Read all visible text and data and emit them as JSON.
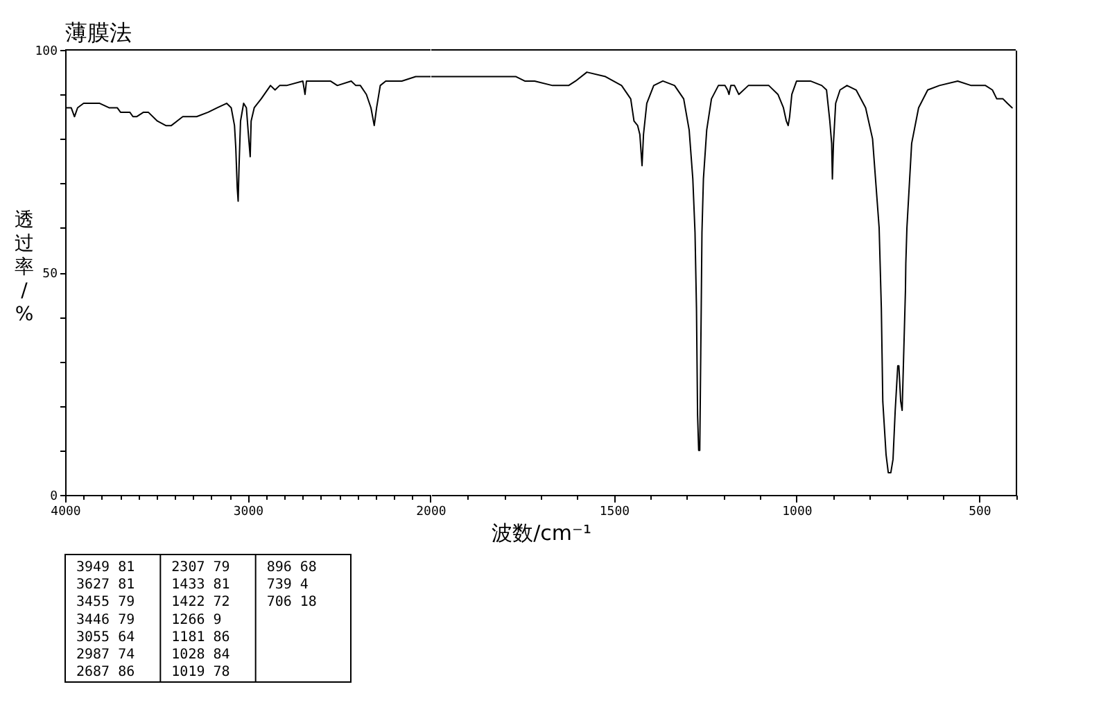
{
  "chart_data": [
    {
      "type": "line",
      "title": "薄膜法",
      "ylabel": "透过率/%",
      "x": [
        3995,
        3967,
        3949,
        3932,
        3899,
        3811,
        3760,
        3715,
        3697,
        3664,
        3646,
        3629,
        3609,
        3571,
        3545,
        3495,
        3449,
        3419,
        3356,
        3280,
        3217,
        3167,
        3116,
        3091,
        3073,
        3066,
        3058,
        3053,
        3048,
        3040,
        3023,
        3008,
        2995,
        2987,
        2982,
        2965,
        2927,
        2876,
        2851,
        2826,
        2788,
        2699,
        2687,
        2679,
        2548,
        2510,
        2434,
        2409,
        2384,
        2351,
        2326,
        2308,
        2295,
        2275,
        2245,
        2157,
        2081,
        2018,
        2000
      ],
      "series": [
        {
          "color": "#000000",
          "values": [
            87,
            87,
            85,
            87,
            88,
            88,
            87,
            87,
            86,
            86,
            86,
            85,
            85,
            86,
            86,
            84,
            83,
            83,
            85,
            85,
            86,
            87,
            88,
            87,
            83,
            78,
            69,
            66,
            74,
            84,
            88,
            87,
            80,
            76,
            84,
            87,
            89,
            92,
            91,
            92,
            92,
            93,
            90,
            93,
            93,
            92,
            93,
            92,
            92,
            90,
            87,
            83,
            87,
            92,
            93,
            93,
            94,
            94,
            94
          ]
        }
      ],
      "xlim": [
        4000,
        2000
      ],
      "xticks": [
        4000,
        {
          "value": 3900,
          "label": null
        },
        {
          "value": 3800,
          "label": null
        },
        {
          "value": 3700,
          "label": null
        },
        {
          "value": 3600,
          "label": null
        },
        {
          "value": 3500,
          "label": null
        },
        {
          "value": 3400,
          "label": null
        },
        {
          "value": 3300,
          "label": null
        },
        {
          "value": 3200,
          "label": null
        },
        {
          "value": 3100,
          "label": null
        },
        3000,
        {
          "value": 2900,
          "label": null
        },
        {
          "value": 2800,
          "label": null
        },
        {
          "value": 2700,
          "label": null
        },
        {
          "value": 2600,
          "label": null
        },
        {
          "value": 2500,
          "label": null
        },
        {
          "value": 2400,
          "label": null
        },
        {
          "value": 2300,
          "label": null
        },
        {
          "value": 2200,
          "label": null
        },
        {
          "value": 2100,
          "label": null
        },
        2000
      ],
      "ylim": [
        0,
        100
      ],
      "yticks": [
        0,
        {
          "value": 10,
          "label": null
        },
        {
          "value": 20,
          "label": null
        },
        {
          "value": 30,
          "label": null
        },
        {
          "value": 40,
          "label": null
        },
        50,
        {
          "value": 60,
          "label": null
        },
        {
          "value": 70,
          "label": null
        },
        {
          "value": 80,
          "label": null
        },
        {
          "value": 90,
          "label": null
        },
        100
      ],
      "annotations": [
        "3949 81",
        "3627 81",
        "3455 79",
        "3446 79",
        "3055 64",
        "2987 74",
        "2687 86",
        "2307 79",
        "1433 81",
        "1422 72",
        "1266 9",
        "1181 86",
        "1028 84",
        "1019 78",
        "896 68",
        "739 4",
        "706 18"
      ]
    },
    {
      "type": "line",
      "xlabel": "波数/cm⁻¹",
      "x": [
        2000,
        1970,
        1894,
        1856,
        1818,
        1768,
        1744,
        1717,
        1668,
        1624,
        1605,
        1574,
        1523,
        1479,
        1454,
        1445,
        1435,
        1429,
        1423,
        1419,
        1410,
        1391,
        1366,
        1334,
        1309,
        1294,
        1284,
        1278,
        1274,
        1271,
        1268,
        1265,
        1261,
        1259,
        1255,
        1246,
        1233,
        1214,
        1196,
        1189,
        1185,
        1180,
        1170,
        1158,
        1132,
        1101,
        1076,
        1051,
        1036,
        1028,
        1023,
        1019,
        1013,
        1000,
        962,
        931,
        918,
        909,
        904,
        902,
        899,
        893,
        881,
        862,
        837,
        811,
        792,
        774,
        768,
        764,
        755,
        749,
        742,
        736,
        730,
        723,
        720,
        715,
        711,
        707,
        702,
        701,
        698,
        685,
        666,
        641,
        609,
        559,
        522,
        483,
        464,
        452,
        435,
        423,
        410
      ],
      "series": [
        {
          "color": "#000000",
          "values": [
            94,
            94,
            94,
            94,
            94,
            94,
            93,
            93,
            92,
            92,
            93,
            95,
            94,
            92,
            89,
            84,
            83,
            81,
            74,
            81,
            88,
            92,
            93,
            92,
            89,
            82,
            71,
            59,
            42,
            18,
            10,
            10,
            42,
            59,
            71,
            82,
            89,
            92,
            92,
            91,
            90,
            92,
            92,
            90,
            92,
            92,
            92,
            90,
            87,
            84,
            83,
            85,
            90,
            93,
            93,
            92,
            91,
            84,
            79,
            71,
            79,
            88,
            91,
            92,
            91,
            87,
            80,
            60,
            42,
            21,
            9,
            5,
            5,
            8,
            19,
            29,
            29,
            21,
            19,
            31,
            46,
            52,
            60,
            79,
            87,
            91,
            92,
            93,
            92,
            92,
            91,
            89,
            89,
            88,
            87
          ]
        }
      ],
      "xlim": [
        2000,
        400
      ],
      "xticks": [
        {
          "value": 1900,
          "label": null
        },
        {
          "value": 1800,
          "label": null
        },
        {
          "value": 1700,
          "label": null
        },
        {
          "value": 1600,
          "label": null
        },
        1500,
        {
          "value": 1400,
          "label": null
        },
        {
          "value": 1300,
          "label": null
        },
        {
          "value": 1200,
          "label": null
        },
        {
          "value": 1100,
          "label": null
        },
        1000,
        {
          "value": 900,
          "label": null
        },
        {
          "value": 800,
          "label": null
        },
        {
          "value": 700,
          "label": null
        },
        {
          "value": 600,
          "label": null
        },
        500,
        {
          "value": 400,
          "label": null
        }
      ],
      "ylim": [
        0,
        100
      ],
      "tick_labels": "x"
    }
  ]
}
